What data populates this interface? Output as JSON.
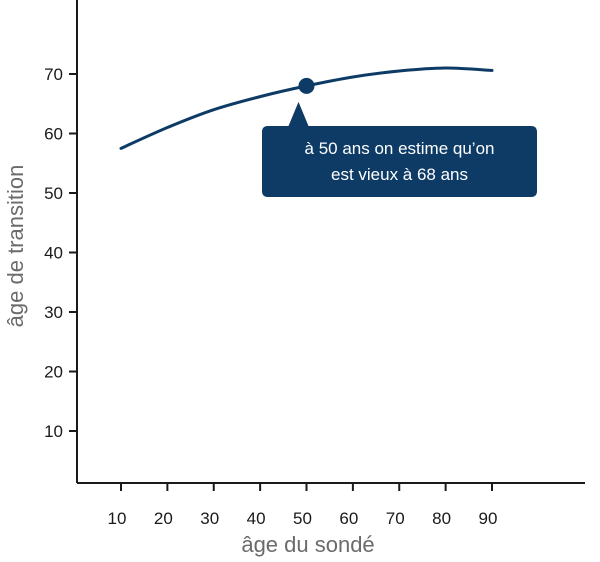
{
  "chart_data": {
    "type": "line",
    "xlabel": "âge du sondé",
    "ylabel": "âge de transition",
    "x_ticks": [
      10,
      20,
      30,
      40,
      50,
      60,
      70,
      80,
      90
    ],
    "y_ticks": [
      10,
      20,
      30,
      40,
      50,
      60,
      70
    ],
    "xlim": [
      0,
      110
    ],
    "ylim": [
      0,
      80
    ],
    "grid": false,
    "series": [
      {
        "x": [
          10,
          20,
          30,
          40,
          50,
          60,
          70,
          80,
          90
        ],
        "y": [
          57.5,
          61.0,
          64.0,
          66.2,
          68.0,
          69.5,
          70.5,
          71.0,
          70.6
        ],
        "color": "#0d3b66"
      }
    ],
    "highlight": {
      "x": 50,
      "y": 68
    },
    "annotation": {
      "line1": "à 50 ans on estime qu’on",
      "line2": "est vieux à 68 ans"
    }
  }
}
